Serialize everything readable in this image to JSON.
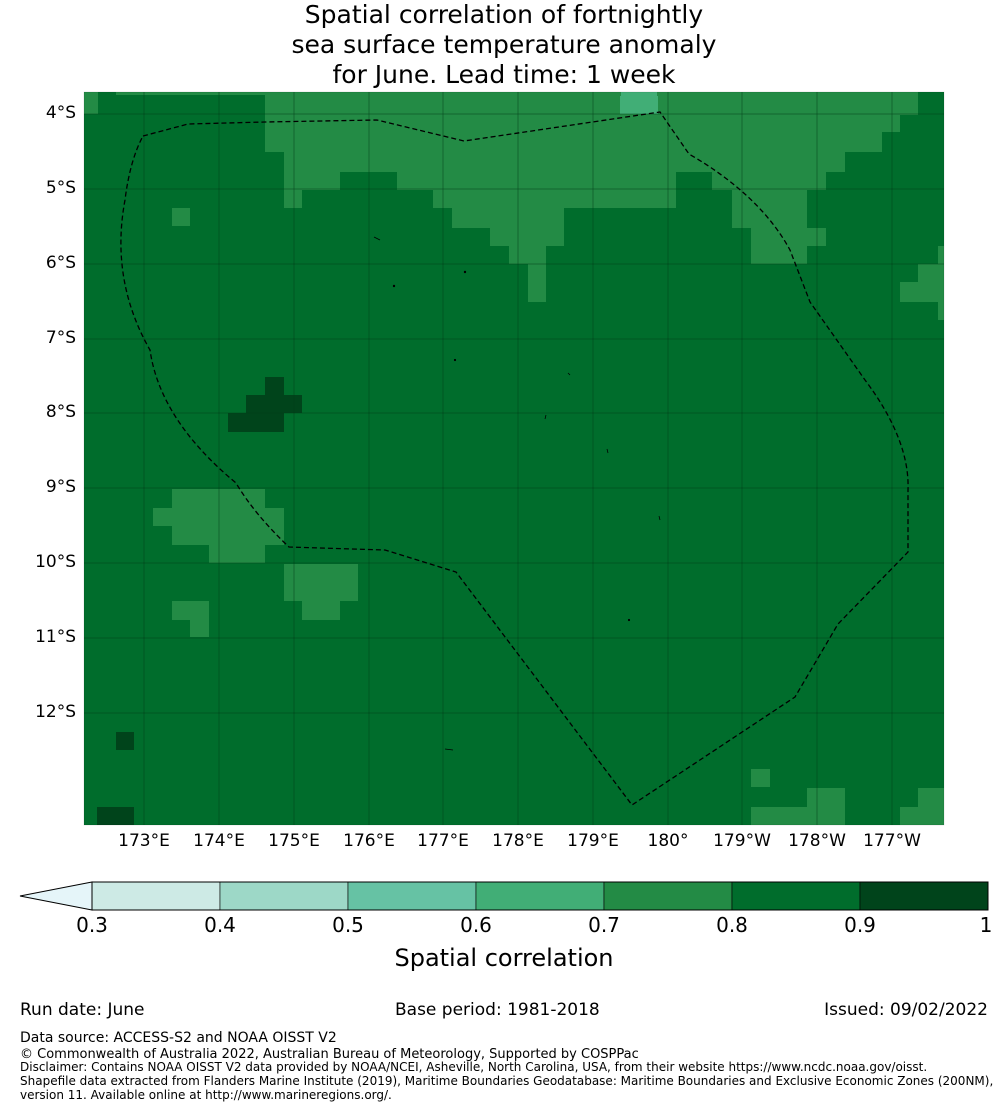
{
  "title": {
    "line1": "Spatial correlation of fortnightly",
    "line2": "sea surface temperature anomaly",
    "line3": "for June. Lead time: 1 week"
  },
  "chart_data": {
    "type": "heatmap",
    "lon_range": [
      172.2,
      182.4
    ],
    "lat_range": [
      -13.75,
      -3.7
    ],
    "x_tick_labels": [
      "173°E",
      "174°E",
      "175°E",
      "176°E",
      "177°E",
      "178°E",
      "179°E",
      "180°",
      "179°W",
      "178°W",
      "177°W"
    ],
    "y_tick_labels": [
      "4°S",
      "5°S",
      "6°S",
      "7°S",
      "8°S",
      "9°S",
      "10°S",
      "11°S",
      "12°S"
    ],
    "background_class": "0.8-0.9",
    "regions": [
      {
        "class": "0.7-0.8",
        "description": "northern band of lower correlation"
      },
      {
        "class": "0.6-0.7",
        "description": "small patch near 180°, 4°S"
      },
      {
        "class": "0.9-1",
        "description": "patch near 174.5°E, 8°S"
      },
      {
        "class": "0.7-0.8",
        "description": "patches near 174°E, 9.5°S and 175.5°E, 10.5°S"
      }
    ],
    "boundary": "Tuvalu EEZ (dashed)"
  },
  "colorbar": {
    "ticks": [
      "0.3",
      "0.4",
      "0.5",
      "0.6",
      "0.7",
      "0.8",
      "0.9",
      "1"
    ],
    "colors": [
      "#cdeae5",
      "#9dd8c7",
      "#66c2a4",
      "#41ae76",
      "#238b45",
      "#006d2c",
      "#00441b"
    ],
    "extend_color": "#e5f5f9",
    "label": "Spatial correlation"
  },
  "footer": {
    "run_date": "Run date: June",
    "base_period": "Base period: 1981-2018",
    "issued": "Issued: 09/02/2022",
    "data_source": "Data source: ACCESS-S2 and NOAA OISST V2",
    "copyright": "© Commonwealth of Australia 2022, Australian Bureau of Meteorology, Supported by COSPPac",
    "disclaimer": "Disclaimer: Contains NOAA OISST V2 data provided by NOAA/NCEI, Asheville, North Carolina, USA, from their website https://www.ncdc.noaa.gov/oisst.",
    "shapefile_1": "Shapefile data extracted from Flanders Marine Institute (2019), Maritime Boundaries Geodatabase: Maritime Boundaries and Exclusive Economic Zones (200NM),",
    "shapefile_2": "version 11. Available online at http://www.marineregions.org/."
  }
}
